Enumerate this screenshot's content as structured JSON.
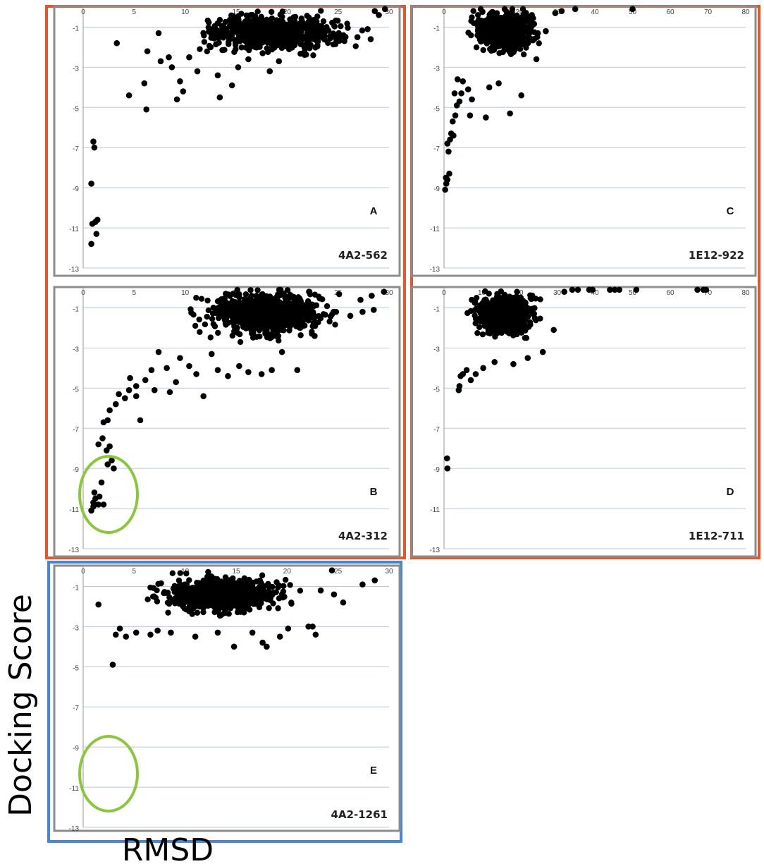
{
  "colors": {
    "outer_frame_orange": "#e4572e",
    "outer_frame_blue": "#4a86d8",
    "panel_frame": "#8c8c8c",
    "gridline": "#b8c8e4",
    "point": "#000000",
    "highlight_ellipse": "#8cc63f"
  },
  "figure": {
    "ylabel": "Docking Score",
    "xlabel": "RMSD"
  },
  "chart_data": [
    {
      "type": "scatter",
      "panel_letter": "A",
      "panel_id": "4A2-562",
      "xticks": [
        0,
        5,
        10,
        15,
        20,
        25,
        30
      ],
      "yticks": [
        -1,
        -3,
        -5,
        -7,
        -9,
        -11,
        -13
      ],
      "xlim": [
        0,
        30
      ],
      "ylim": [
        -13,
        0
      ],
      "grid": "horizontal",
      "highlight": false,
      "points": [
        [
          0.8,
          -11.8
        ],
        [
          0.9,
          -10.8
        ],
        [
          1.3,
          -11.3
        ],
        [
          1.2,
          -10.7
        ],
        [
          1.4,
          -10.6
        ],
        [
          0.8,
          -8.8
        ],
        [
          1.0,
          -6.7
        ],
        [
          1.1,
          -7.0
        ],
        [
          3.3,
          -1.8
        ],
        [
          4.5,
          -4.4
        ],
        [
          6.0,
          -3.8
        ],
        [
          6.2,
          -5.1
        ],
        [
          6.3,
          -2.2
        ],
        [
          7.4,
          -1.3
        ],
        [
          7.6,
          -2.7
        ],
        [
          8.4,
          -2.5
        ],
        [
          8.7,
          -3.0
        ],
        [
          9.2,
          -4.6
        ],
        [
          9.5,
          -3.7
        ],
        [
          9.8,
          -4.2
        ],
        [
          10.4,
          -2.5
        ],
        [
          11.2,
          -3.2
        ],
        [
          12.5,
          -2.0
        ],
        [
          13.2,
          -3.4
        ],
        [
          13.4,
          -4.5
        ],
        [
          14.6,
          -3.9
        ],
        [
          15.2,
          -3.0
        ],
        [
          16.2,
          -2.6
        ],
        [
          17.6,
          -2.3
        ],
        [
          18.3,
          -3.2
        ],
        [
          19.2,
          -2.7
        ],
        [
          20.2,
          -2.1
        ],
        [
          22.2,
          -1.6
        ],
        [
          24.6,
          -1.4
        ],
        [
          26.9,
          -1.5
        ],
        [
          28.2,
          -1.6
        ],
        [
          27.9,
          -1.1
        ],
        [
          29.6,
          -0.1
        ],
        [
          29.0,
          -0.4
        ],
        [
          28.6,
          -0.2
        ]
      ],
      "cloud": {
        "x_range": [
          7,
          29.8
        ],
        "y_range": [
          -3.2,
          -0.1
        ],
        "x_center": 18.5,
        "y_center": -1.3,
        "count": 720
      }
    },
    {
      "type": "scatter",
      "panel_letter": "B",
      "panel_id": "4A2-312",
      "xticks": [
        0,
        5,
        10,
        15,
        20,
        25,
        30
      ],
      "yticks": [
        -1,
        -3,
        -5,
        -7,
        -9,
        -11,
        -13
      ],
      "xlim": [
        0,
        30
      ],
      "ylim": [
        -13,
        0
      ],
      "grid": "horizontal",
      "highlight": true,
      "points": [
        [
          0.8,
          -11.1
        ],
        [
          1.0,
          -10.9
        ],
        [
          1.2,
          -10.5
        ],
        [
          1.1,
          -10.2
        ],
        [
          1.5,
          -10.8
        ],
        [
          1.0,
          -10.7
        ],
        [
          2.0,
          -10.8
        ],
        [
          1.6,
          -10.4
        ],
        [
          1.8,
          -9.7
        ],
        [
          2.4,
          -8.8
        ],
        [
          3.0,
          -9.0
        ],
        [
          2.8,
          -8.6
        ],
        [
          2.3,
          -8.1
        ],
        [
          2.6,
          -7.9
        ],
        [
          1.5,
          -7.8
        ],
        [
          1.9,
          -7.5
        ],
        [
          2.0,
          -6.7
        ],
        [
          2.4,
          -6.6
        ],
        [
          2.6,
          -6.1
        ],
        [
          3.2,
          -5.8
        ],
        [
          3.5,
          -5.3
        ],
        [
          4.1,
          -5.5
        ],
        [
          4.6,
          -4.5
        ],
        [
          4.5,
          -5.1
        ],
        [
          5.2,
          -5.4
        ],
        [
          5.6,
          -6.6
        ],
        [
          5.2,
          -4.9
        ],
        [
          6.1,
          -4.6
        ],
        [
          6.7,
          -4.1
        ],
        [
          7.0,
          -5.1
        ],
        [
          7.4,
          -3.2
        ],
        [
          8.2,
          -4.0
        ],
        [
          8.5,
          -5.2
        ],
        [
          9.1,
          -4.7
        ],
        [
          9.5,
          -3.5
        ],
        [
          10.4,
          -3.9
        ],
        [
          11.1,
          -4.3
        ],
        [
          11.8,
          -5.4
        ],
        [
          12.6,
          -3.3
        ],
        [
          13.2,
          -4.1
        ],
        [
          14.2,
          -4.4
        ],
        [
          15.3,
          -3.9
        ],
        [
          16.2,
          -4.2
        ],
        [
          17.5,
          -4.3
        ],
        [
          18.5,
          -4.1
        ],
        [
          19.5,
          -3.2
        ],
        [
          21.0,
          -4.1
        ],
        [
          22.7,
          -2.4
        ],
        [
          24.8,
          -1.2
        ],
        [
          26.2,
          -1.4
        ],
        [
          27.4,
          -1.2
        ],
        [
          28.5,
          -1.1
        ],
        [
          29.5,
          -0.2
        ],
        [
          28.3,
          -0.4
        ],
        [
          27.2,
          -0.6
        ]
      ],
      "cloud": {
        "x_range": [
          8,
          27.5
        ],
        "y_range": [
          -4.0,
          -0.1
        ],
        "x_center": 18,
        "y_center": -1.3,
        "count": 800
      }
    },
    {
      "type": "scatter",
      "panel_letter": "C",
      "panel_id": "1E12-922",
      "xticks": [
        0,
        10,
        20,
        30,
        40,
        50,
        60,
        70,
        80
      ],
      "yticks": [
        -1,
        -3,
        -5,
        -7,
        -9,
        -11,
        -13
      ],
      "xlim": [
        0,
        80
      ],
      "ylim": [
        -13,
        0
      ],
      "grid": "horizontal",
      "highlight": false,
      "points": [
        [
          0.3,
          -9.1
        ],
        [
          0.6,
          -8.8
        ],
        [
          0.9,
          -8.6
        ],
        [
          0.5,
          -8.5
        ],
        [
          1.4,
          -8.3
        ],
        [
          1.2,
          -7.2
        ],
        [
          0.9,
          -6.8
        ],
        [
          1.6,
          -6.6
        ],
        [
          1.9,
          -6.3
        ],
        [
          2.5,
          -6.4
        ],
        [
          2.3,
          -5.7
        ],
        [
          3.0,
          -5.4
        ],
        [
          3.4,
          -4.9
        ],
        [
          4.1,
          -4.7
        ],
        [
          4.6,
          -4.3
        ],
        [
          2.8,
          -4.3
        ],
        [
          3.6,
          -3.6
        ],
        [
          5.0,
          -3.7
        ],
        [
          6.4,
          -4.1
        ],
        [
          7.4,
          -4.6
        ],
        [
          6.9,
          -5.4
        ],
        [
          11.1,
          -5.5
        ],
        [
          17.5,
          -5.3
        ],
        [
          20.5,
          -4.4
        ],
        [
          14.5,
          -3.8
        ],
        [
          12.0,
          -4.0
        ],
        [
          24.5,
          -2.6
        ],
        [
          27.0,
          -1.2
        ],
        [
          31.2,
          -0.2
        ],
        [
          34.8,
          -0.1
        ],
        [
          50.0,
          -0.1
        ],
        [
          29.5,
          -0.3
        ]
      ],
      "cloud": {
        "x_range": [
          3,
          29
        ],
        "y_range": [
          -3.8,
          -0.1
        ],
        "x_center": 16,
        "y_center": -1.2,
        "count": 640
      }
    },
    {
      "type": "scatter",
      "panel_letter": "D",
      "panel_id": "1E12-711",
      "xticks": [
        0,
        10,
        20,
        30,
        40,
        50,
        60,
        70,
        80
      ],
      "yticks": [
        -1,
        -3,
        -5,
        -7,
        -9,
        -11,
        -13
      ],
      "xlim": [
        0,
        80
      ],
      "ylim": [
        -13,
        0
      ],
      "grid": "horizontal",
      "highlight": false,
      "points": [
        [
          0.9,
          -9.0
        ],
        [
          0.8,
          -8.5
        ],
        [
          3.9,
          -5.1
        ],
        [
          4.1,
          -4.9
        ],
        [
          4.4,
          -4.4
        ],
        [
          5.0,
          -4.3
        ],
        [
          6.0,
          -4.1
        ],
        [
          7.1,
          -4.6
        ],
        [
          8.4,
          -4.3
        ],
        [
          10.4,
          -4.0
        ],
        [
          13.4,
          -3.7
        ],
        [
          18.4,
          -3.8
        ],
        [
          22.2,
          -3.5
        ],
        [
          26.2,
          -3.2
        ],
        [
          29.1,
          -2.1
        ],
        [
          31.9,
          -0.2
        ],
        [
          34.0,
          -0.1
        ],
        [
          35.5,
          -0.1
        ],
        [
          38.5,
          -0.1
        ],
        [
          39.4,
          -0.1
        ],
        [
          44.0,
          -0.1
        ],
        [
          45.3,
          -0.1
        ],
        [
          46.5,
          -0.1
        ],
        [
          51.0,
          -0.1
        ],
        [
          67.2,
          -0.1
        ],
        [
          68.8,
          -0.1
        ],
        [
          69.5,
          -0.1
        ]
      ],
      "cloud": {
        "x_range": [
          4,
          30
        ],
        "y_range": [
          -3.6,
          -0.1
        ],
        "x_center": 16,
        "y_center": -1.3,
        "count": 780
      }
    },
    {
      "type": "scatter",
      "panel_letter": "E",
      "panel_id": "4A2-1261",
      "xticks": [
        0,
        5,
        10,
        15,
        20,
        25,
        30
      ],
      "yticks": [
        -1,
        -3,
        -5,
        -7,
        -9,
        -11,
        -13
      ],
      "xlim": [
        0,
        30
      ],
      "ylim": [
        -13,
        0
      ],
      "grid": "horizontal",
      "highlight": true,
      "points": [
        [
          1.5,
          -1.9
        ],
        [
          2.9,
          -4.9
        ],
        [
          3.2,
          -3.4
        ],
        [
          3.6,
          -3.1
        ],
        [
          4.2,
          -3.5
        ],
        [
          5.2,
          -3.3
        ],
        [
          6.6,
          -3.4
        ],
        [
          7.3,
          -3.2
        ],
        [
          8.6,
          -3.3
        ],
        [
          11.0,
          -3.5
        ],
        [
          13.2,
          -3.3
        ],
        [
          14.8,
          -4.0
        ],
        [
          16.6,
          -3.3
        ],
        [
          17.6,
          -3.8
        ],
        [
          18.0,
          -4.0
        ],
        [
          19.3,
          -3.5
        ],
        [
          20.1,
          -3.1
        ],
        [
          22.1,
          -3.0
        ],
        [
          22.5,
          -3.0
        ],
        [
          22.8,
          -3.4
        ],
        [
          23.3,
          -1.2
        ],
        [
          24.6,
          -1.4
        ],
        [
          25.5,
          -1.8
        ],
        [
          27.4,
          -0.9
        ],
        [
          28.6,
          -0.7
        ],
        [
          24.4,
          -0.2
        ]
      ],
      "cloud": {
        "x_range": [
          3,
          23
        ],
        "y_range": [
          -3.4,
          -0.2
        ],
        "x_center": 13.5,
        "y_center": -1.4,
        "count": 720
      }
    }
  ]
}
